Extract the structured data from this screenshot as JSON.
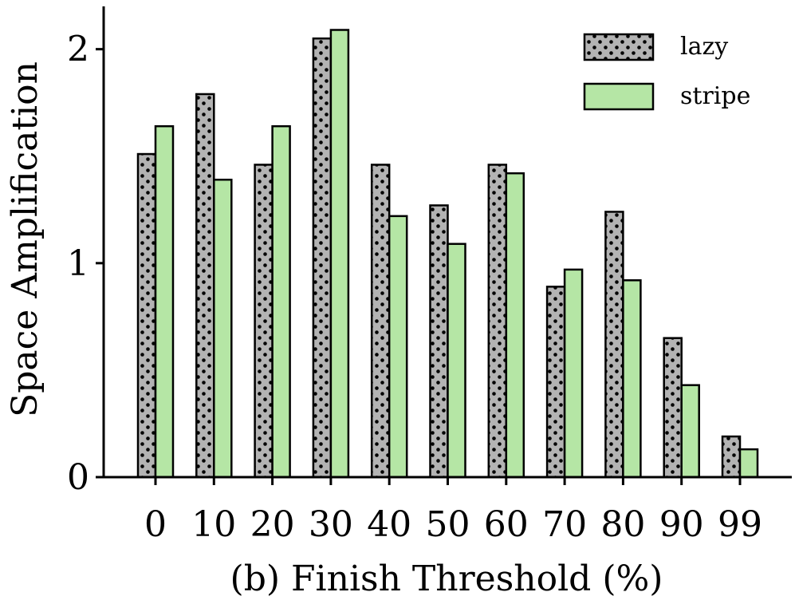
{
  "chart_data": {
    "type": "bar",
    "categories": [
      "0",
      "10",
      "20",
      "30",
      "40",
      "50",
      "60",
      "70",
      "80",
      "90",
      "99"
    ],
    "series": [
      {
        "name": "lazy",
        "values": [
          1.51,
          1.79,
          1.46,
          2.05,
          1.46,
          1.27,
          1.46,
          0.89,
          1.24,
          0.65,
          0.19
        ],
        "color": "#b3b3b3",
        "pattern": "dots"
      },
      {
        "name": "stripe",
        "values": [
          1.64,
          1.39,
          1.64,
          2.09,
          1.22,
          1.09,
          1.42,
          0.97,
          0.92,
          0.43,
          0.13
        ],
        "color": "#b5e6a5",
        "pattern": "solid"
      }
    ],
    "title": "",
    "xlabel": "(b) Finish Threshold (%)",
    "ylabel": "Space Amplification",
    "ylim": [
      0,
      2.2
    ],
    "yticks": [
      "0",
      "1",
      "2"
    ],
    "grid": false,
    "legend_position": "top-right"
  }
}
